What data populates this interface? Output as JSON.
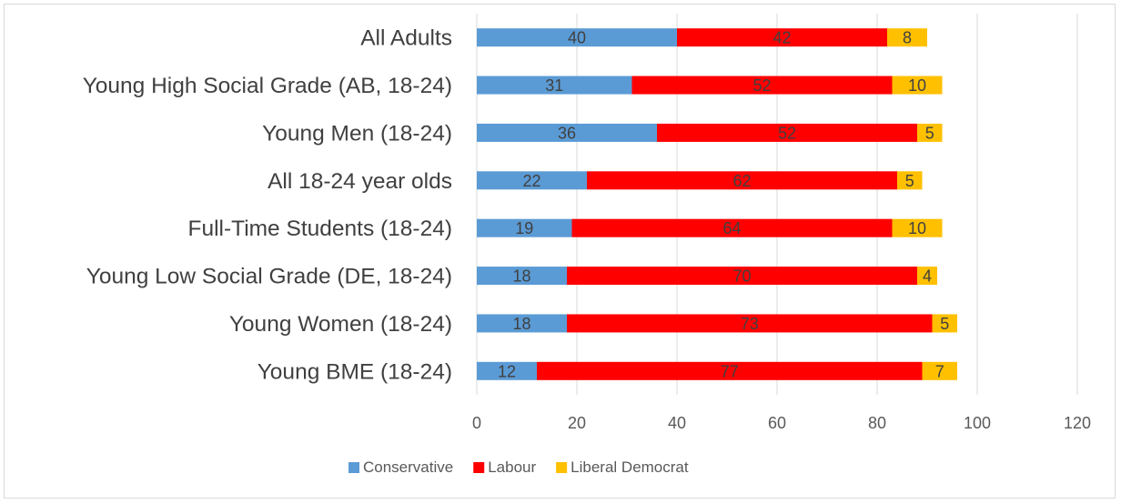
{
  "chart_data": {
    "type": "bar",
    "orientation": "horizontal",
    "stacked": true,
    "title": "",
    "xlabel": "",
    "ylabel": "",
    "categories": [
      "All Adults",
      "Young High Social Grade (AB, 18-24)",
      "Young Men (18-24)",
      "All 18-24 year olds",
      "Full-Time Students (18-24)",
      "Young Low Social Grade (DE, 18-24)",
      "Young Women (18-24)",
      "Young BME (18-24)"
    ],
    "series": [
      {
        "name": "Conservative",
        "color": "#5b9bd5",
        "values": [
          40,
          31,
          36,
          22,
          19,
          18,
          18,
          12
        ]
      },
      {
        "name": "Labour",
        "color": "#ff0000",
        "values": [
          42,
          52,
          52,
          62,
          64,
          70,
          73,
          77
        ]
      },
      {
        "name": "Liberal Democrat",
        "color": "#ffc000",
        "values": [
          8,
          10,
          5,
          5,
          10,
          4,
          5,
          7
        ]
      }
    ],
    "xlim": [
      0,
      120
    ],
    "xticks": [
      0,
      20,
      40,
      60,
      80,
      100,
      120
    ],
    "grid": true,
    "legend_position": "bottom",
    "data_label_color": "#404040",
    "tick_label_color": "#595959",
    "category_label_color": "#404040",
    "gridline_color": "#d9d9d9"
  }
}
